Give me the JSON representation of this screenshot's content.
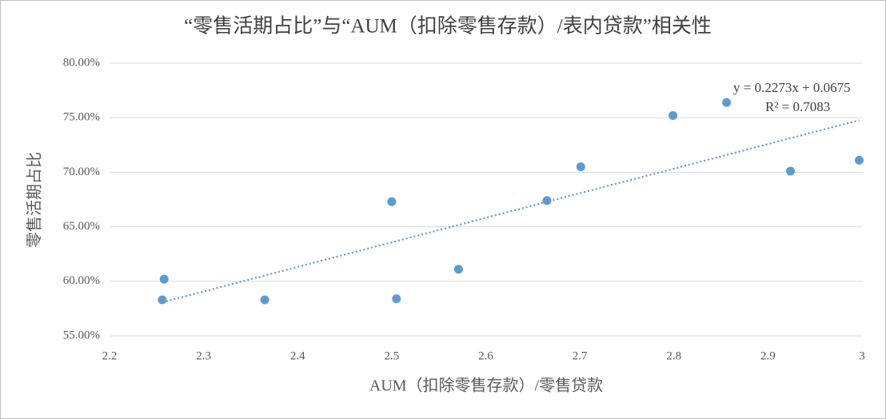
{
  "chart_data": {
    "type": "scatter",
    "title": "“零售活期占比”与“AUM（扣除零售存款）/表内贷款”相关性",
    "x_label": "AUM（扣除零售存款）/零售贷款",
    "y_label": "零售活期占比",
    "series": [
      {
        "color": "#5b9bd5",
        "x": [
          2.256,
          2.258,
          2.365,
          2.5,
          2.505,
          2.571,
          2.665,
          2.701,
          2.799,
          2.856,
          2.924,
          2.997
        ],
        "values": [
          58.3,
          60.2,
          58.3,
          67.3,
          58.4,
          61.1,
          67.4,
          70.5,
          75.2,
          76.4,
          70.1,
          71.1
        ]
      }
    ],
    "trendline": {
      "equation": "y = 0.2273x + 0.0675",
      "r_squared": "R² = 0.7083"
    },
    "xlim": [
      2.2,
      3
    ],
    "xticks": [
      2.2,
      2.3,
      2.4,
      2.5,
      2.6,
      2.7,
      2.8,
      2.9,
      3
    ],
    "ylim": [
      55,
      80
    ],
    "yticks": [
      {
        "value": 55,
        "label": "55.00%"
      },
      {
        "value": 60,
        "label": "60.00%"
      },
      {
        "value": 65,
        "label": "65.00%"
      },
      {
        "value": 70,
        "label": "70.00%"
      },
      {
        "value": 75,
        "label": "75.00%"
      },
      {
        "value": 80,
        "label": "80.00%"
      }
    ],
    "grid": true
  }
}
